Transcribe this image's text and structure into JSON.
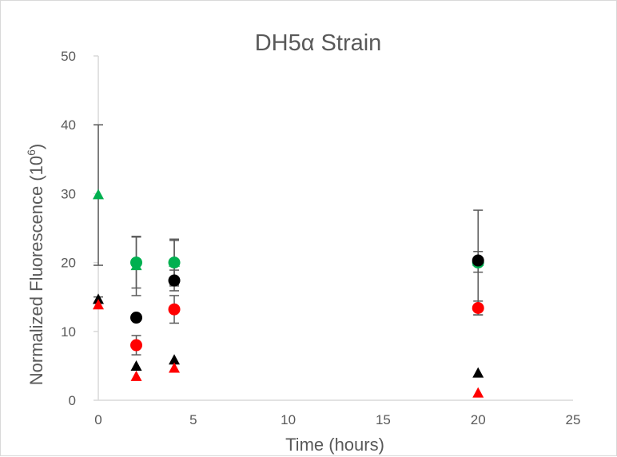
{
  "chart_data": {
    "type": "scatter",
    "title": "DH5α Strain",
    "xlabel": "Time (hours)",
    "ylabel_main": "Normalized Fluorescence (10",
    "ylabel_sup": "6",
    "ylabel_end": ")",
    "xlim": [
      0,
      25
    ],
    "ylim": [
      0,
      50
    ],
    "x_ticks": [
      0,
      5,
      10,
      15,
      20,
      25
    ],
    "y_ticks": [
      0,
      10,
      20,
      30,
      40,
      50
    ],
    "grid": false,
    "legend": "none",
    "series": [
      {
        "marker": "triangle",
        "color": "#00b050",
        "points": [
          {
            "x": 0,
            "y": 29.8,
            "err": 10.2
          },
          {
            "x": 2,
            "y": 19.5,
            "err": 4.3
          },
          {
            "x": 4,
            "y": 20.0,
            "err": 3.2
          },
          {
            "x": 20,
            "y": 20.1,
            "err": 1.5
          }
        ]
      },
      {
        "marker": "circle",
        "color": "#00b050",
        "points": [
          {
            "x": 2,
            "y": 20.0,
            "err": 3.7
          },
          {
            "x": 4,
            "y": 20.0,
            "err": 3.4
          },
          {
            "x": 20,
            "y": 20.0,
            "err": 7.6
          }
        ]
      },
      {
        "marker": "circle",
        "color": "#000000",
        "points": [
          {
            "x": 2,
            "y": 12.0,
            "err": 0
          },
          {
            "x": 4,
            "y": 17.4,
            "err": 1.5
          },
          {
            "x": 20,
            "y": 20.3,
            "err": 0
          }
        ]
      },
      {
        "marker": "circle",
        "color": "#ff0000",
        "points": [
          {
            "x": 2,
            "y": 8.0,
            "err": 1.4
          },
          {
            "x": 4,
            "y": 13.2,
            "err": 2.0
          },
          {
            "x": 20,
            "y": 13.4,
            "err": 1.0
          }
        ]
      },
      {
        "marker": "triangle",
        "color": "#000000",
        "points": [
          {
            "x": 0,
            "y": 14.6,
            "err": 0.4
          },
          {
            "x": 2,
            "y": 4.9,
            "err": 0
          },
          {
            "x": 4,
            "y": 5.8,
            "err": 0
          },
          {
            "x": 20,
            "y": 3.9,
            "err": 0
          }
        ]
      },
      {
        "marker": "triangle",
        "color": "#ff0000",
        "points": [
          {
            "x": 0,
            "y": 13.8,
            "err": 0
          },
          {
            "x": 2,
            "y": 3.4,
            "err": 0
          },
          {
            "x": 4,
            "y": 4.6,
            "err": 0
          },
          {
            "x": 20,
            "y": 1.0,
            "err": 0
          }
        ]
      }
    ]
  }
}
